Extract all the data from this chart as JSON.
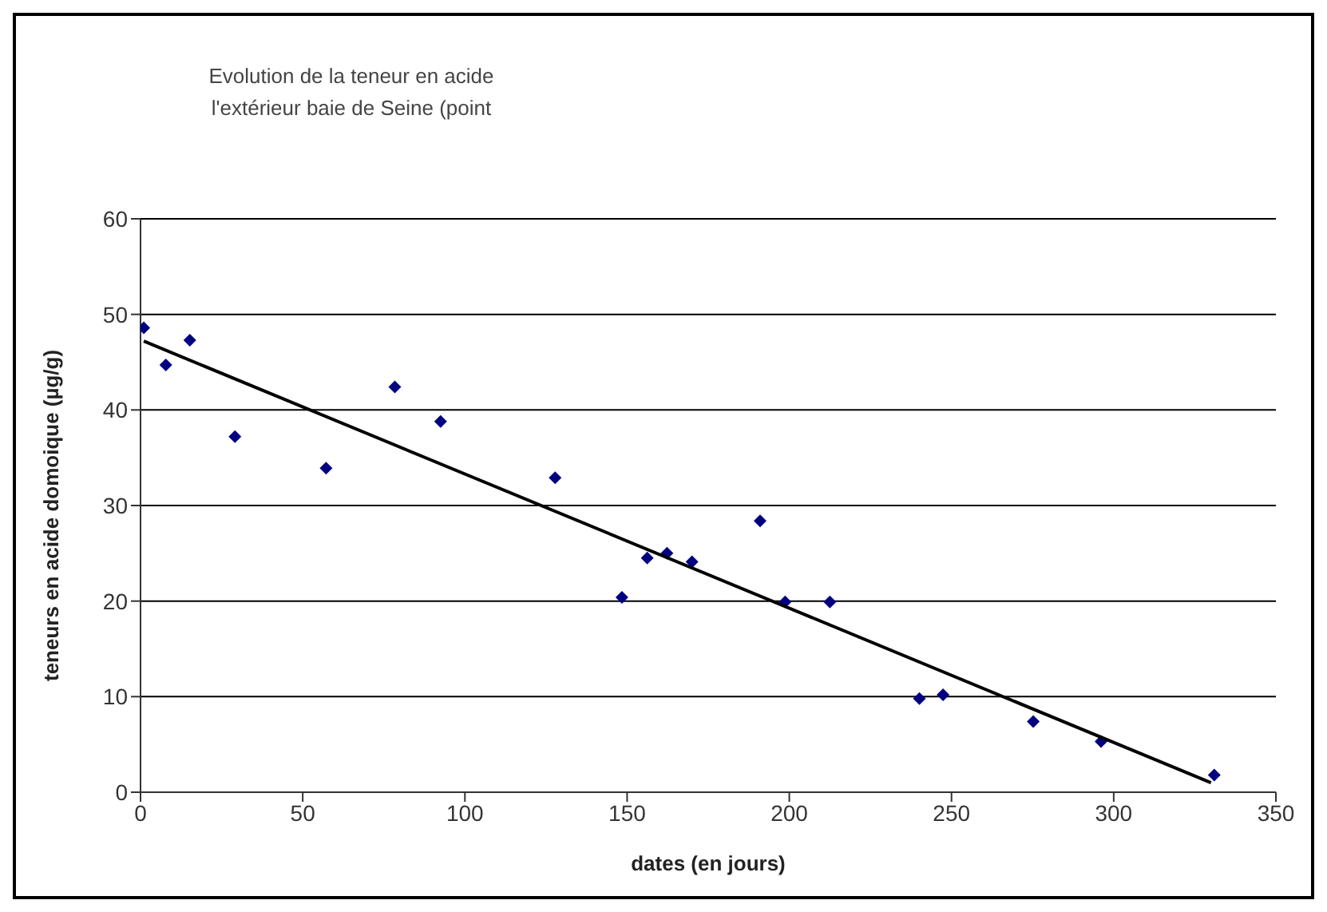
{
  "chart_data": {
    "type": "scatter",
    "title": "Evolution de la teneur en acide\nl'extérieur baie de Seine (point",
    "xlabel": "dates (en jours)",
    "ylabel": "teneurs en acide domoique (µg/g)",
    "xlim": [
      0,
      350
    ],
    "xticks": [
      0,
      50,
      100,
      150,
      200,
      250,
      300,
      350
    ],
    "ylim": [
      0,
      60
    ],
    "yticks": [
      0,
      10,
      20,
      30,
      40,
      50,
      60
    ],
    "grid": "y",
    "legend": false,
    "marker": "diamond",
    "series": [
      {
        "color": "#000080",
        "x": [
          1,
          7.8,
          15.2,
          29.1,
          57.2,
          78.4,
          92.5,
          127.8,
          148.4,
          156.2,
          162.3,
          170,
          191,
          198.7,
          212.5,
          240.1,
          247.4,
          275.2,
          296.1,
          331
        ],
        "values": [
          48.6,
          44.7,
          47.3,
          37.2,
          33.9,
          42.4,
          38.8,
          32.9,
          20.4,
          24.5,
          25,
          24.1,
          28.4,
          19.9,
          19.9,
          9.8,
          10.2,
          7.4,
          5.3,
          1.8
        ]
      },
      {
        "type": "line",
        "marker": "none",
        "color": "#000000",
        "x": [
          1,
          330
        ],
        "values": [
          47.2,
          1
        ]
      }
    ]
  }
}
